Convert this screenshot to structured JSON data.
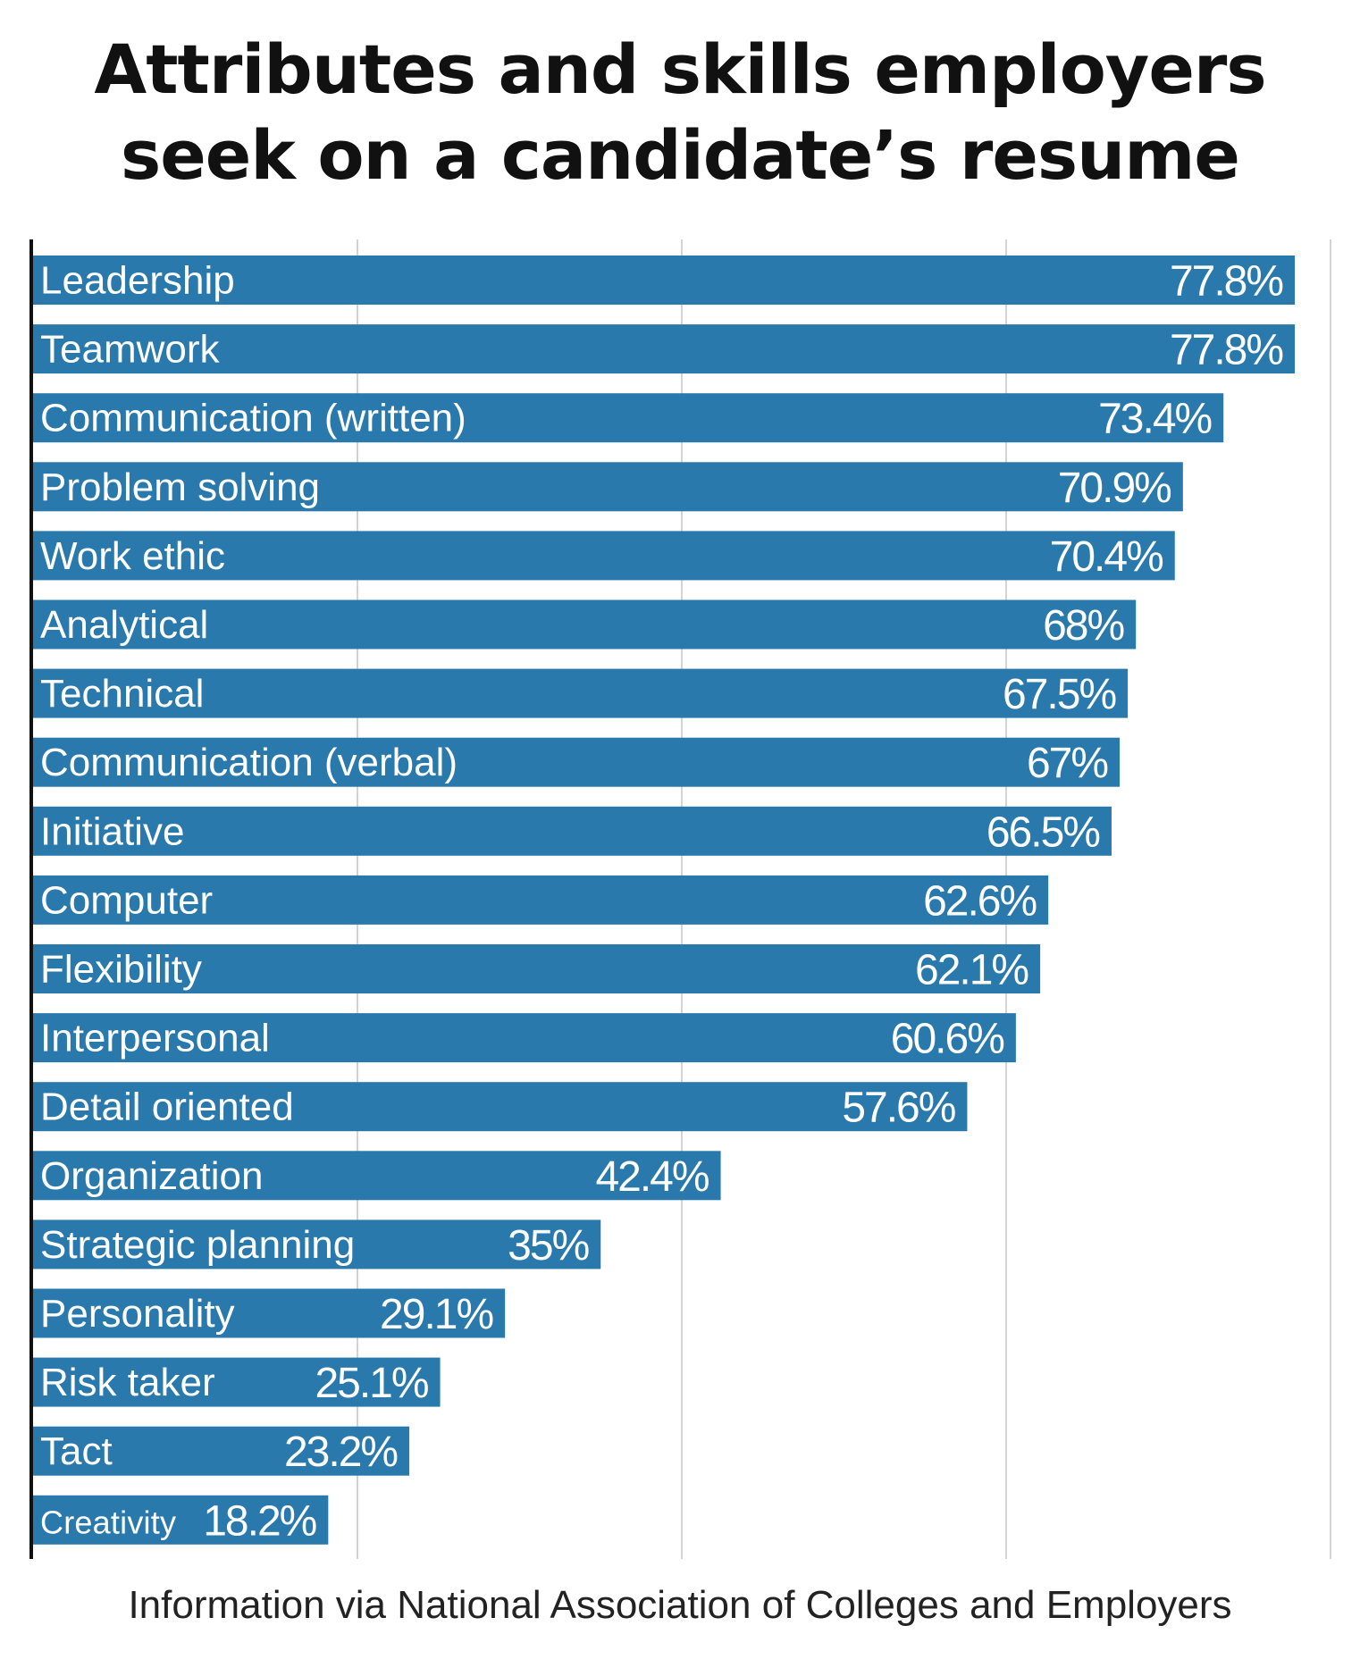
{
  "title_lines": [
    "Attributes and skills employers",
    "seek on a candidate’s resume"
  ],
  "source": "Information via National Association of Colleges and Employers",
  "colors": {
    "bar": "#2a79ad",
    "bar_text": "#ffffff",
    "grid": "#d4d4d4",
    "axis": "#111111",
    "title": "#111111"
  },
  "chart_data": {
    "type": "bar",
    "orientation": "horizontal",
    "title": "Attributes and skills employers seek on a candidate’s resume",
    "xlim": [
      0,
      80
    ],
    "grid": true,
    "categories": [
      "Leadership",
      "Teamwork",
      "Communication (written)",
      "Problem solving",
      "Work ethic",
      "Analytical",
      "Technical",
      "Communication (verbal)",
      "Initiative",
      "Computer",
      "Flexibility",
      "Interpersonal",
      "Detail oriented",
      "Organization",
      "Strategic planning",
      "Personality",
      "Risk taker",
      "Tact",
      "Creativity"
    ],
    "values": [
      77.8,
      77.8,
      73.4,
      70.9,
      70.4,
      68,
      67.5,
      67,
      66.5,
      62.6,
      62.1,
      60.6,
      57.6,
      42.4,
      35,
      29.1,
      25.1,
      23.2,
      18.2
    ],
    "value_labels": [
      "77.8%",
      "77.8%",
      "73.4%",
      "70.9%",
      "70.4%",
      "68%",
      "67.5%",
      "67%",
      "66.5%",
      "62.6%",
      "62.1%",
      "60.6%",
      "57.6%",
      "42.4%",
      "35%",
      "29.1%",
      "25.1%",
      "23.2%",
      "18.2%"
    ]
  }
}
